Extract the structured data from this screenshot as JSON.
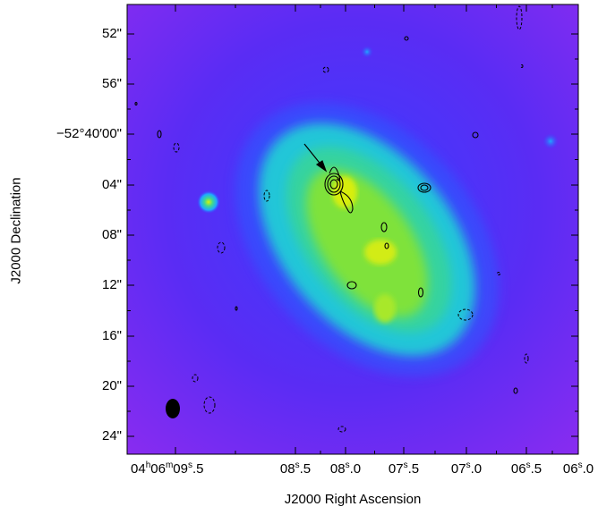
{
  "figure": {
    "xlabel": "J2000 Right Ascension",
    "ylabel": "J2000 Declination",
    "y_ticks": [
      "52\"",
      "56\"",
      "−52°40′00\"",
      "04\"",
      "08\"",
      "12\"",
      "16\"",
      "20\"",
      "24\""
    ],
    "x_ticks": [
      {
        "base": "04",
        "sup1": "h",
        "mid": "06",
        "sup2": "m",
        "tail": "09",
        "sup3": "s",
        "end": ".5"
      },
      {
        "base": "08",
        "sup1": "s",
        "end": ".5"
      },
      {
        "base": "08",
        "sup1": "s",
        "end": ".0"
      },
      {
        "base": "07",
        "sup1": "s",
        "end": ".5"
      },
      {
        "base": "07",
        "sup1": "s",
        "end": ".0"
      },
      {
        "base": "06",
        "sup1": "s",
        "end": ".5"
      },
      {
        "base": "06",
        "sup1": "s",
        "end": ".0"
      }
    ],
    "colors": {
      "background": "#6a2cf0",
      "halo": "#2a5cff",
      "outer": "#22c6d8",
      "inner": "#35d3a0",
      "core": "#7fe23a",
      "bright": "#c9ee20",
      "contour": "#000000"
    }
  }
}
